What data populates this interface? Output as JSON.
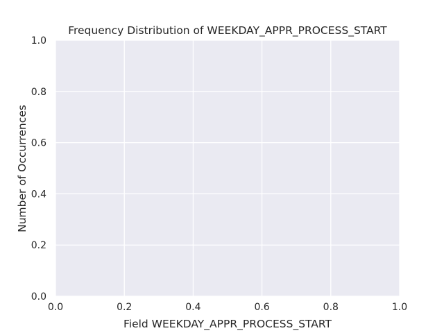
{
  "chart_data": {
    "type": "bar",
    "title": "Frequency Distribution of WEEKDAY_APPR_PROCESS_START",
    "xlabel": "Field WEEKDAY_APPR_PROCESS_START",
    "ylabel": "Number of Occurrences",
    "categories": [],
    "values": [],
    "xlim": [
      0.0,
      1.0
    ],
    "ylim": [
      0.0,
      1.0
    ],
    "xticks": [
      "0.0",
      "0.2",
      "0.4",
      "0.6",
      "0.8",
      "1.0"
    ],
    "yticks": [
      "0.0",
      "0.2",
      "0.4",
      "0.6",
      "0.8",
      "1.0"
    ],
    "grid": true,
    "colors": {
      "plot_background": "#EAEAF2",
      "grid": "#FFFFFF",
      "text": "#262626"
    }
  }
}
